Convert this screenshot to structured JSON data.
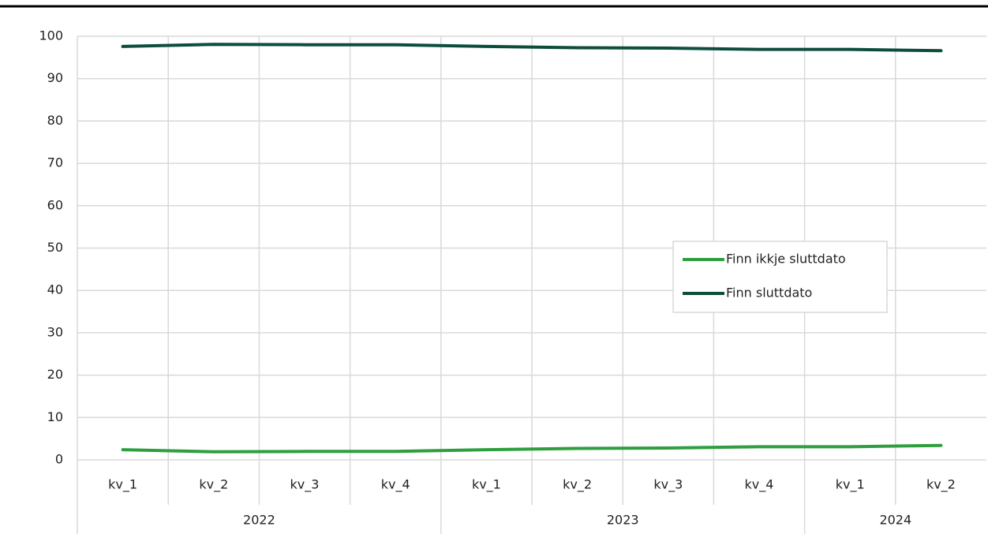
{
  "chart_data": {
    "type": "line",
    "groups": [
      {
        "label": "2022",
        "categories": [
          "kv_1",
          "kv_2",
          "kv_3",
          "kv_4"
        ]
      },
      {
        "label": "2023",
        "categories": [
          "kv_1",
          "kv_2",
          "kv_3",
          "kv_4"
        ]
      },
      {
        "label": "2024",
        "categories": [
          "kv_1",
          "kv_2"
        ]
      }
    ],
    "series": [
      {
        "name": "Finn ikkje sluttdato",
        "color": "#2e9e3e",
        "values": [
          2.4,
          1.9,
          2.0,
          2.0,
          2.4,
          2.7,
          2.8,
          3.1,
          3.1,
          3.4
        ]
      },
      {
        "name": "Finn sluttdato",
        "color": "#0d4d3d",
        "values": [
          97.6,
          98.1,
          98.0,
          98.0,
          97.6,
          97.3,
          97.2,
          96.9,
          96.9,
          96.6
        ]
      }
    ],
    "ylim": [
      0,
      100
    ],
    "yticks": [
      0,
      10,
      20,
      30,
      40,
      50,
      60,
      70,
      80,
      90,
      100
    ],
    "grid": true,
    "legend": "right"
  }
}
